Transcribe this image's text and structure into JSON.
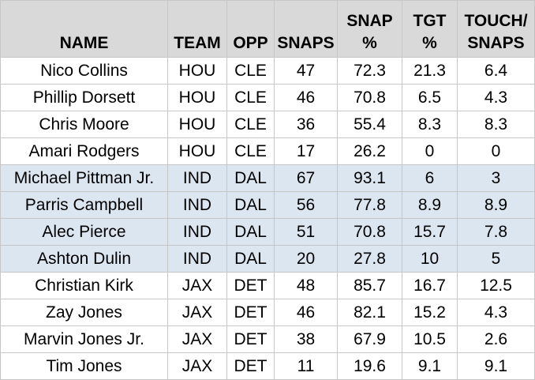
{
  "table": {
    "headers": [
      {
        "key": "name",
        "lines": [
          "NAME"
        ]
      },
      {
        "key": "team",
        "lines": [
          "TEAM"
        ]
      },
      {
        "key": "opp",
        "lines": [
          "OPP"
        ]
      },
      {
        "key": "snaps",
        "lines": [
          "SNAPS"
        ]
      },
      {
        "key": "snap_pct",
        "lines": [
          "SNAP",
          "%"
        ]
      },
      {
        "key": "tgt_pct",
        "lines": [
          "TGT",
          "%"
        ]
      },
      {
        "key": "touch_snaps",
        "lines": [
          "TOUCH/",
          "SNAPS"
        ]
      }
    ],
    "shade_color": "#dce6f1",
    "header_color": "#d9d9d9",
    "rows": [
      {
        "name": "Nico Collins",
        "team": "HOU",
        "opp": "CLE",
        "snaps": "47",
        "snap_pct": "72.3",
        "tgt_pct": "21.3",
        "touch_snaps": "6.4",
        "shaded": false
      },
      {
        "name": "Phillip Dorsett",
        "team": "HOU",
        "opp": "CLE",
        "snaps": "46",
        "snap_pct": "70.8",
        "tgt_pct": "6.5",
        "touch_snaps": "4.3",
        "shaded": false
      },
      {
        "name": "Chris Moore",
        "team": "HOU",
        "opp": "CLE",
        "snaps": "36",
        "snap_pct": "55.4",
        "tgt_pct": "8.3",
        "touch_snaps": "8.3",
        "shaded": false
      },
      {
        "name": "Amari Rodgers",
        "team": "HOU",
        "opp": "CLE",
        "snaps": "17",
        "snap_pct": "26.2",
        "tgt_pct": "0",
        "touch_snaps": "0",
        "shaded": false
      },
      {
        "name": "Michael Pittman Jr.",
        "team": "IND",
        "opp": "DAL",
        "snaps": "67",
        "snap_pct": "93.1",
        "tgt_pct": "6",
        "touch_snaps": "3",
        "shaded": true
      },
      {
        "name": "Parris Campbell",
        "team": "IND",
        "opp": "DAL",
        "snaps": "56",
        "snap_pct": "77.8",
        "tgt_pct": "8.9",
        "touch_snaps": "8.9",
        "shaded": true
      },
      {
        "name": "Alec Pierce",
        "team": "IND",
        "opp": "DAL",
        "snaps": "51",
        "snap_pct": "70.8",
        "tgt_pct": "15.7",
        "touch_snaps": "7.8",
        "shaded": true
      },
      {
        "name": "Ashton Dulin",
        "team": "IND",
        "opp": "DAL",
        "snaps": "20",
        "snap_pct": "27.8",
        "tgt_pct": "10",
        "touch_snaps": "5",
        "shaded": true
      },
      {
        "name": "Christian Kirk",
        "team": "JAX",
        "opp": "DET",
        "snaps": "48",
        "snap_pct": "85.7",
        "tgt_pct": "16.7",
        "touch_snaps": "12.5",
        "shaded": false
      },
      {
        "name": "Zay Jones",
        "team": "JAX",
        "opp": "DET",
        "snaps": "46",
        "snap_pct": "82.1",
        "tgt_pct": "15.2",
        "touch_snaps": "4.3",
        "shaded": false
      },
      {
        "name": "Marvin Jones Jr.",
        "team": "JAX",
        "opp": "DET",
        "snaps": "38",
        "snap_pct": "67.9",
        "tgt_pct": "10.5",
        "touch_snaps": "2.6",
        "shaded": false
      },
      {
        "name": "Tim Jones",
        "team": "JAX",
        "opp": "DET",
        "snaps": "11",
        "snap_pct": "19.6",
        "tgt_pct": "9.1",
        "touch_snaps": "9.1",
        "shaded": false
      }
    ]
  }
}
